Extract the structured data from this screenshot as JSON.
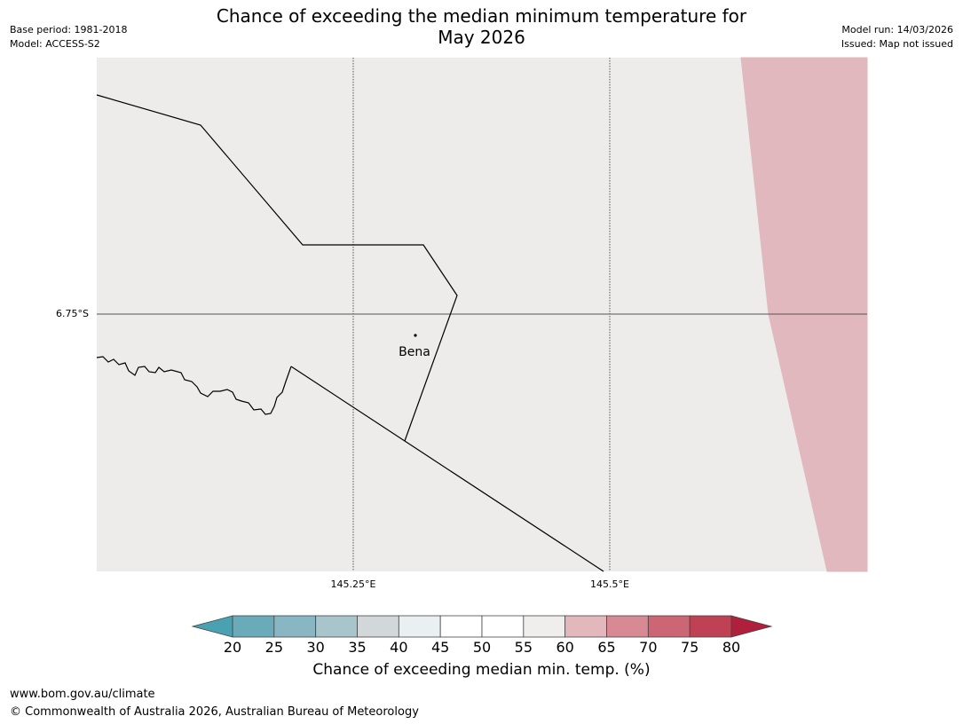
{
  "header": {
    "title_line1": "Chance of exceeding the median minimum temperature for",
    "title_line2": "May 2026",
    "base_period": "Base period: 1981-2018",
    "model": "Model: ACCESS-S2",
    "model_run": "Model run: 14/03/2026",
    "issued": "Issued: Map not issued"
  },
  "map": {
    "lat_label": "6.75°S",
    "lon_labels": [
      "145.25°E",
      "145.5°E"
    ],
    "place_label": "Bena",
    "colors": {
      "background": "#edecea",
      "warm_zone": "#e0b8be",
      "border": "#000000",
      "gridline": "#555555"
    }
  },
  "colorbar": {
    "title": "Chance of exceeding median min. temp. (%)",
    "ticks": [
      "20",
      "25",
      "30",
      "35",
      "40",
      "45",
      "50",
      "55",
      "60",
      "65",
      "70",
      "75",
      "80"
    ],
    "colors": {
      "under": "#4aa1b1",
      "bins": [
        "#6aabb9",
        "#88b6c2",
        "#a7c5cb",
        "#d2d8da",
        "#eaf0f2",
        "#ffffff",
        "#ffffff",
        "#f0eeec",
        "#e3b8bd",
        "#d78a93",
        "#cc6674",
        "#bf4254"
      ],
      "over": "#b01f3b"
    }
  },
  "footer": {
    "url": "www.bom.gov.au/climate",
    "copyright": "© Commonwealth of Australia 2026, Australian Bureau of Meteorology"
  }
}
